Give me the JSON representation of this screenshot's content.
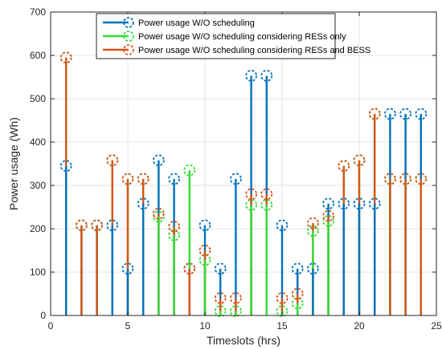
{
  "chart_data": {
    "type": "stem",
    "xlabel": "Timeslots (hrs)",
    "ylabel": "Power usage (Wh)",
    "xlim": [
      0,
      25
    ],
    "ylim": [
      0,
      700
    ],
    "xticks": [
      "0",
      "5",
      "10",
      "15",
      "20",
      "25"
    ],
    "yticks": [
      "0",
      "100",
      "200",
      "300",
      "400",
      "500",
      "600",
      "700"
    ],
    "grid": true,
    "legend_position": "top-center",
    "x": [
      1,
      2,
      3,
      4,
      5,
      6,
      7,
      8,
      9,
      10,
      11,
      12,
      13,
      14,
      15,
      16,
      17,
      18,
      19,
      20,
      21,
      22,
      23,
      24
    ],
    "series": [
      {
        "name": "Power usage W/O scheduling",
        "color": "#0072BD",
        "values": [
          345,
          208,
          208,
          208,
          108,
          258,
          358,
          315,
          108,
          208,
          108,
          315,
          553,
          553,
          208,
          108,
          108,
          258,
          258,
          258,
          258,
          465,
          465,
          465
        ]
      },
      {
        "name": "Power usage W/O scheduling considering RESs only",
        "color": "#33DD33",
        "values": [
          595,
          208,
          208,
          358,
          315,
          315,
          228,
          185,
          335,
          128,
          10,
          10,
          255,
          255,
          10,
          28,
          195,
          218,
          345,
          358,
          465,
          315,
          315,
          315
        ]
      },
      {
        "name": "Power usage W/O scheduling considering RESs and BESS",
        "color": "#D95319",
        "values": [
          595,
          208,
          208,
          358,
          315,
          315,
          235,
          205,
          108,
          150,
          40,
          40,
          280,
          280,
          40,
          50,
          213,
          230,
          345,
          358,
          465,
          315,
          315,
          315
        ]
      }
    ]
  }
}
